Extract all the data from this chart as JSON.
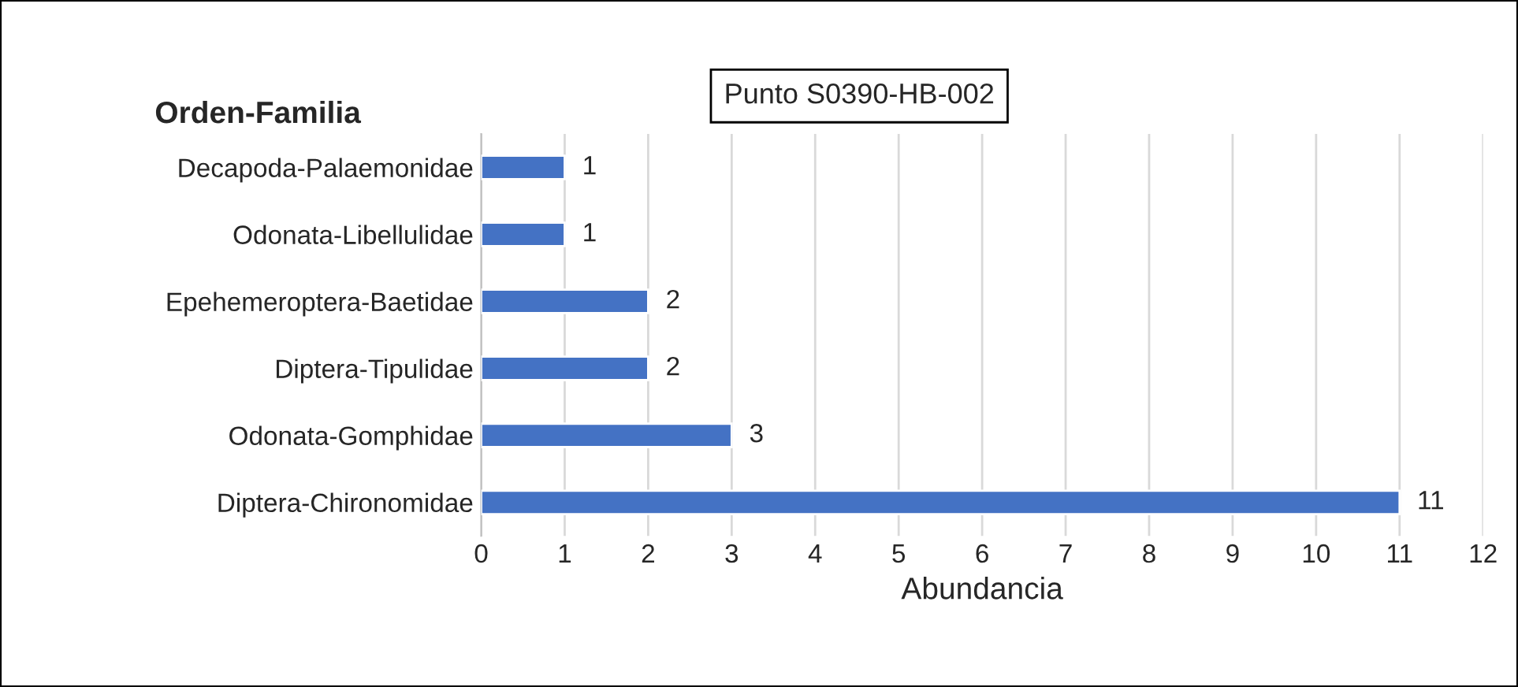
{
  "chart_data": {
    "type": "bar",
    "orientation": "horizontal",
    "title": "Punto S0390-HB-002",
    "ylabel": "Orden-Familia",
    "xlabel": "Abundancia",
    "categories": [
      "Decapoda-Palaemonidae",
      "Odonata-Libellulidae",
      "Epehemeroptera-Baetidae",
      "Diptera-Tipulidae",
      "Odonata-Gomphidae",
      "Diptera-Chironomidae"
    ],
    "values": [
      1,
      1,
      2,
      2,
      3,
      11
    ],
    "color": "#4472c4",
    "xlim": [
      0,
      12
    ],
    "xticks": [
      0,
      1,
      2,
      3,
      4,
      5,
      6,
      7,
      8,
      9,
      10,
      11,
      12
    ],
    "grid": "x",
    "data_labels": true
  }
}
